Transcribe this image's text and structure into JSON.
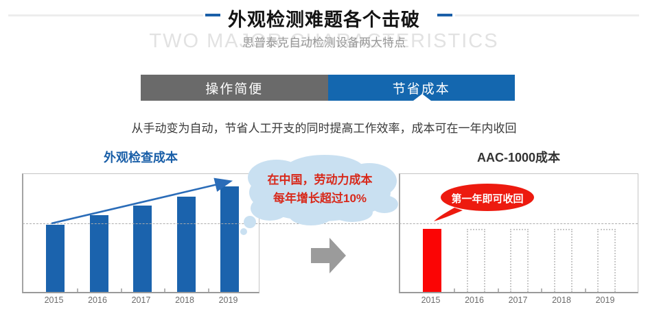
{
  "header": {
    "title": "外观检测难题各个击破",
    "subtitle": "思普泰克自动检测设备两大特点",
    "watermark": "TWO MAJOR CHARACTERISTICS",
    "accent_color": "#1a5fa8"
  },
  "tabs": [
    {
      "label": "操作简便",
      "active": false,
      "bg": "#6a6a6a"
    },
    {
      "label": "节省成本",
      "active": true,
      "bg": "#1467af"
    }
  ],
  "description": "从手动变为自动，节省人工开支的同时提高工作效率，成本可在一年内收回",
  "cloud_callout": {
    "line1": "在中国，劳动力成本",
    "line2": "每年增长超过10%",
    "text_color": "#d8291b",
    "bg_color": "#c9e0f1"
  },
  "bubble_callout": {
    "text": "第一年即可收回",
    "bg_color": "#ed1a0f",
    "text_color": "#ffffff"
  },
  "transition": {
    "arrow_color": "#9b9b9b"
  },
  "chart_data": [
    {
      "type": "bar",
      "title": "外观检查成本",
      "title_color": "#1a5fa8",
      "categories": [
        "2015",
        "2016",
        "2017",
        "2018",
        "2019"
      ],
      "values": [
        98,
        112,
        126,
        139,
        154
      ],
      "value_unit": "relative bar height in px (no numeric axis shown)",
      "bar_color": "#1b63ad",
      "grid": "single dashed horizontal reference line at 2015 bar level",
      "legend": "none",
      "xlabel": "",
      "ylabel": "",
      "annotations": [
        "blue rising trend arrow from 2015 bar top to 2019 bar top"
      ]
    },
    {
      "type": "bar",
      "title": "AAC-1000成本",
      "title_color": "#333333",
      "categories": [
        "2015",
        "2016",
        "2017",
        "2018",
        "2019"
      ],
      "values": [
        92,
        92,
        92,
        92,
        92
      ],
      "value_unit": "relative bar height in px (no numeric axis shown)",
      "bar_color": "#fb0505",
      "bar_styles": [
        "filled",
        "dashed-outline",
        "dashed-outline",
        "dashed-outline",
        "dashed-outline"
      ],
      "ghost_border_color": "#c8c8c8",
      "grid": "single dashed horizontal reference line above bar tops",
      "legend": "none",
      "xlabel": "",
      "ylabel": "",
      "annotations": [
        "red speech bubble: 第一年即可收回 pointing at 2015 bar"
      ]
    }
  ]
}
